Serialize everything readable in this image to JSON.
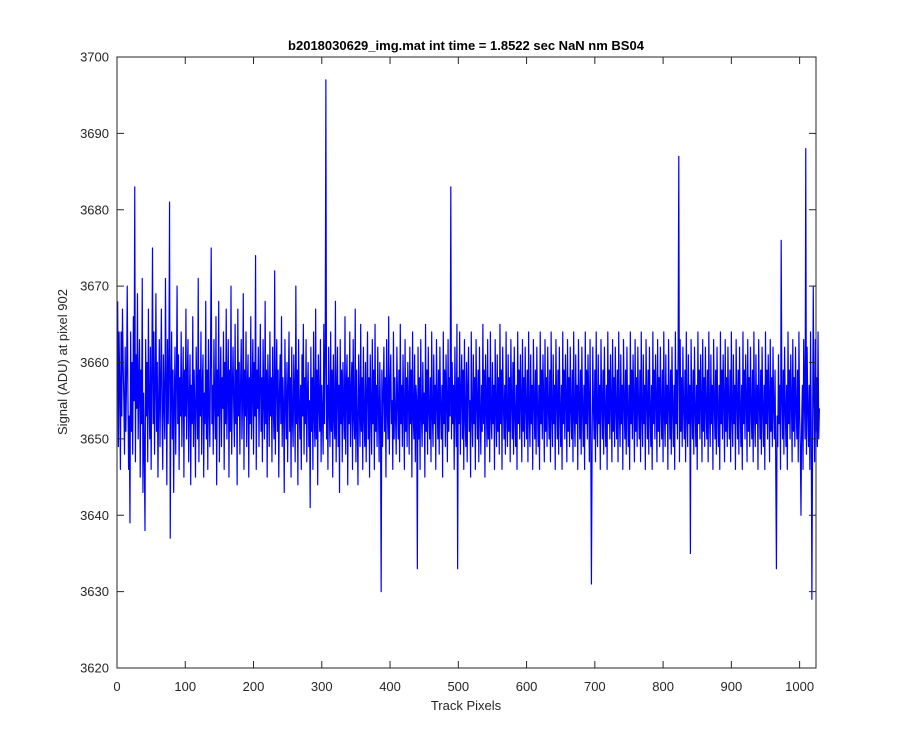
{
  "chart_data": {
    "type": "line",
    "title": "b2018030629_img.mat int time = 1.8522 sec  NaN nm BS04",
    "xlabel": "Track Pixels",
    "ylabel": "Signal (ADU) at pixel 902",
    "xlim": [
      0,
      1024
    ],
    "ylim": [
      3620,
      3700
    ],
    "xticks": [
      0,
      100,
      200,
      300,
      400,
      500,
      600,
      700,
      800,
      900,
      1000
    ],
    "yticks": [
      3620,
      3630,
      3640,
      3650,
      3660,
      3670,
      3680,
      3690,
      3700
    ],
    "grid": false,
    "legend": "none",
    "series": [
      {
        "color": "#0000ff",
        "x_start": 1,
        "x_step": 1,
        "values": [
          3668,
          3649,
          3664,
          3657,
          3646,
          3664,
          3653,
          3667,
          3660,
          3655,
          3648,
          3662,
          3651,
          3658,
          3670,
          3656,
          3646,
          3653,
          3639,
          3664,
          3651,
          3660,
          3648,
          3666,
          3655,
          3683,
          3647,
          3661,
          3654,
          3669,
          3650,
          3657,
          3663,
          3645,
          3659,
          3652,
          3671,
          3643,
          3656,
          3648,
          3638,
          3663,
          3653,
          3660,
          3647,
          3667,
          3655,
          3650,
          3662,
          3646,
          3658,
          3675,
          3652,
          3664,
          3648,
          3657,
          3669,
          3651,
          3660,
          3645,
          3655,
          3663,
          3649,
          3658,
          3667,
          3653,
          3646,
          3661,
          3655,
          3650,
          3671,
          3658,
          3644,
          3663,
          3652,
          3660,
          3681,
          3637,
          3656,
          3664,
          3650,
          3659,
          3643,
          3655,
          3662,
          3648,
          3657,
          3670,
          3652,
          3661,
          3646,
          3658,
          3653,
          3664,
          3649,
          3656,
          3662,
          3645,
          3659,
          3653,
          3667,
          3650,
          3658,
          3663,
          3647,
          3655,
          3661,
          3644,
          3657,
          3652,
          3666,
          3649,
          3659,
          3654,
          3645,
          3662,
          3656,
          3650,
          3671,
          3647,
          3659,
          3653,
          3664,
          3648,
          3657,
          3661,
          3645,
          3656,
          3652,
          3668,
          3650,
          3659,
          3646,
          3663,
          3654,
          3649,
          3661,
          3675,
          3652,
          3657,
          3648,
          3663,
          3655,
          3650,
          3666,
          3644,
          3659,
          3653,
          3668,
          3647,
          3656,
          3662,
          3649,
          3658,
          3654,
          3664,
          3646,
          3660,
          3652,
          3667,
          3650,
          3657,
          3663,
          3645,
          3659,
          3651,
          3670,
          3648,
          3656,
          3662,
          3654,
          3649,
          3665,
          3652,
          3659,
          3644,
          3667,
          3653,
          3660,
          3648,
          3657,
          3663,
          3650,
          3655,
          3669,
          3646,
          3659,
          3653,
          3664,
          3649,
          3657,
          3661,
          3645,
          3658,
          3652,
          3666,
          3650,
          3656,
          3663,
          3648,
          3660,
          3653,
          3674,
          3646,
          3659,
          3654,
          3662,
          3649,
          3657,
          3665,
          3651,
          3658,
          3647,
          3663,
          3655,
          3650,
          3668,
          3652,
          3659,
          3645,
          3661,
          3656,
          3649,
          3664,
          3653,
          3658,
          3647,
          3662,
          3654,
          3650,
          3672,
          3648,
          3657,
          3663,
          3651,
          3659,
          3645,
          3656,
          3661,
          3652,
          3666,
          3649,
          3658,
          3654,
          3643,
          3663,
          3655,
          3650,
          3660,
          3647,
          3657,
          3664,
          3651,
          3658,
          3645,
          3662,
          3653,
          3649,
          3661,
          3656,
          3647,
          3670,
          3652,
          3659,
          3644,
          3663,
          3654,
          3650,
          3657,
          3646,
          3661,
          3653,
          3665,
          3648,
          3658,
          3652,
          3663,
          3647,
          3656,
          3660,
          3649,
          3655,
          3641,
          3662,
          3651,
          3658,
          3646,
          3664,
          3653,
          3649,
          3667,
          3650,
          3659,
          3644,
          3661,
          3655,
          3651,
          3663,
          3647,
          3657,
          3653,
          3648,
          3665,
          3652,
          3660,
          3697,
          3650,
          3657,
          3646,
          3662,
          3654,
          3649,
          3664,
          3651,
          3659,
          3645,
          3661,
          3653,
          3650,
          3668,
          3647,
          3656,
          3662,
          3649,
          3657,
          3643,
          3663,
          3652,
          3659,
          3647,
          3660,
          3654,
          3650,
          3666,
          3648,
          3657,
          3661,
          3644,
          3658,
          3652,
          3664,
          3649,
          3656,
          3660,
          3646,
          3663,
          3653,
          3650,
          3667,
          3647,
          3659,
          3652,
          3644,
          3661,
          3655,
          3649,
          3665,
          3651,
          3658,
          3646,
          3662,
          3653,
          3649,
          3660,
          3647,
          3656,
          3664,
          3650,
          3658,
          3645,
          3661,
          3654,
          3648,
          3663,
          3652,
          3659,
          3646,
          3665,
          3651,
          3657,
          3649,
          3662,
          3654,
          3647,
          3660,
          3653,
          3630,
          3659,
          3649,
          3656,
          3662,
          3651,
          3658,
          3645,
          3663,
          3654,
          3650,
          3666,
          3648,
          3657,
          3661,
          3652,
          3655,
          3646,
          3664,
          3650,
          3658,
          3653,
          3648,
          3662,
          3655,
          3650,
          3659,
          3647,
          3665,
          3652,
          3657,
          3649,
          3661,
          3654,
          3646,
          3663,
          3651,
          3658,
          3649,
          3660,
          3655,
          3648,
          3662,
          3652,
          3659,
          3645,
          3664,
          3653,
          3650,
          3661,
          3647,
          3657,
          3655,
          3633,
          3662,
          3650,
          3658,
          3646,
          3663,
          3653,
          3649,
          3660,
          3652,
          3656,
          3645,
          3665,
          3651,
          3659,
          3648,
          3662,
          3654,
          3650,
          3658,
          3647,
          3664,
          3653,
          3649,
          3661,
          3652,
          3657,
          3646,
          3663,
          3655,
          3650,
          3659,
          3648,
          3662,
          3654,
          3650,
          3657,
          3645,
          3664,
          3652,
          3659,
          3649,
          3661,
          3655,
          3647,
          3663,
          3651,
          3658,
          3653,
          3683,
          3650,
          3660,
          3652,
          3657,
          3646,
          3662,
          3654,
          3649,
          3665,
          3633,
          3658,
          3652,
          3664,
          3648,
          3656,
          3661,
          3650,
          3659,
          3646,
          3663,
          3653,
          3649,
          3660,
          3647,
          3657,
          3662,
          3651,
          3655,
          3645,
          3664,
          3653,
          3649,
          3661,
          3652,
          3658,
          3646,
          3663,
          3655,
          3650,
          3659,
          3647,
          3662,
          3654,
          3648,
          3657,
          3651,
          3665,
          3652,
          3659,
          3645,
          3661,
          3655,
          3649,
          3663,
          3650,
          3658,
          3647,
          3664,
          3653,
          3650,
          3660,
          3652,
          3657,
          3646,
          3663,
          3654,
          3649,
          3661,
          3651,
          3658,
          3648,
          3665,
          3652,
          3659,
          3646,
          3662,
          3655,
          3650,
          3657,
          3648,
          3664,
          3653,
          3649,
          3661,
          3651,
          3658,
          3647,
          3663,
          3655,
          3650,
          3660,
          3648,
          3662,
          3653,
          3649,
          3657,
          3646,
          3664,
          3652,
          3659,
          3650,
          3661,
          3655,
          3647,
          3663,
          3651,
          3658,
          3649,
          3662,
          3654,
          3650,
          3659,
          3647,
          3664,
          3653,
          3649,
          3661,
          3652,
          3657,
          3646,
          3663,
          3655,
          3650,
          3659,
          3648,
          3662,
          3654,
          3649,
          3657,
          3646,
          3664,
          3652,
          3659,
          3650,
          3661,
          3655,
          3647,
          3663,
          3651,
          3658,
          3649,
          3662,
          3654,
          3650,
          3659,
          3647,
          3664,
          3653,
          3649,
          3661,
          3652,
          3657,
          3646,
          3663,
          3655,
          3650,
          3659,
          3648,
          3662,
          3654,
          3649,
          3657,
          3646,
          3664,
          3652,
          3659,
          3650,
          3661,
          3655,
          3647,
          3663,
          3651,
          3658,
          3649,
          3662,
          3654,
          3650,
          3659,
          3647,
          3664,
          3653,
          3649,
          3661,
          3652,
          3657,
          3646,
          3663,
          3655,
          3650,
          3659,
          3648,
          3662,
          3654,
          3649,
          3657,
          3646,
          3664,
          3652,
          3659,
          3650,
          3661,
          3655,
          3647,
          3663,
          3651,
          3631,
          3649,
          3662,
          3654,
          3650,
          3659,
          3647,
          3664,
          3653,
          3649,
          3661,
          3652,
          3657,
          3646,
          3663,
          3655,
          3650,
          3659,
          3648,
          3662,
          3654,
          3649,
          3657,
          3646,
          3664,
          3652,
          3659,
          3650,
          3661,
          3655,
          3647,
          3663,
          3651,
          3658,
          3649,
          3662,
          3654,
          3650,
          3659,
          3647,
          3664,
          3653,
          3649,
          3661,
          3652,
          3657,
          3646,
          3663,
          3655,
          3650,
          3659,
          3648,
          3662,
          3654,
          3649,
          3657,
          3646,
          3664,
          3652,
          3659,
          3650,
          3661,
          3655,
          3647,
          3663,
          3651,
          3658,
          3649,
          3662,
          3654,
          3650,
          3659,
          3647,
          3664,
          3653,
          3649,
          3661,
          3652,
          3657,
          3646,
          3663,
          3655,
          3650,
          3659,
          3648,
          3662,
          3654,
          3649,
          3657,
          3646,
          3664,
          3652,
          3659,
          3650,
          3661,
          3655,
          3647,
          3663,
          3651,
          3658,
          3649,
          3662,
          3654,
          3650,
          3659,
          3647,
          3664,
          3653,
          3649,
          3661,
          3652,
          3657,
          3646,
          3663,
          3655,
          3650,
          3659,
          3648,
          3662,
          3654,
          3649,
          3657,
          3646,
          3664,
          3652,
          3659,
          3650,
          3661,
          3687,
          3647,
          3663,
          3651,
          3658,
          3649,
          3662,
          3654,
          3650,
          3659,
          3647,
          3664,
          3653,
          3649,
          3661,
          3652,
          3657,
          3635,
          3663,
          3655,
          3650,
          3659,
          3648,
          3662,
          3654,
          3649,
          3657,
          3646,
          3664,
          3652,
          3659,
          3650,
          3661,
          3655,
          3647,
          3663,
          3651,
          3658,
          3649,
          3662,
          3654,
          3650,
          3659,
          3647,
          3664,
          3653,
          3649,
          3661,
          3652,
          3657,
          3646,
          3663,
          3655,
          3650,
          3659,
          3648,
          3662,
          3654,
          3649,
          3657,
          3646,
          3664,
          3652,
          3659,
          3650,
          3661,
          3655,
          3647,
          3663,
          3651,
          3658,
          3649,
          3662,
          3654,
          3650,
          3659,
          3647,
          3664,
          3653,
          3649,
          3661,
          3652,
          3657,
          3646,
          3663,
          3655,
          3650,
          3659,
          3648,
          3662,
          3654,
          3649,
          3657,
          3646,
          3664,
          3652,
          3659,
          3650,
          3661,
          3655,
          3647,
          3663,
          3651,
          3658,
          3649,
          3662,
          3654,
          3650,
          3659,
          3647,
          3664,
          3653,
          3649,
          3661,
          3652,
          3657,
          3646,
          3663,
          3655,
          3650,
          3659,
          3648,
          3662,
          3654,
          3649,
          3657,
          3646,
          3664,
          3652,
          3659,
          3650,
          3661,
          3655,
          3647,
          3663,
          3651,
          3658,
          3649,
          3662,
          3654,
          3650,
          3659,
          3647,
          3633,
          3653,
          3649,
          3661,
          3652,
          3657,
          3646,
          3676,
          3655,
          3650,
          3659,
          3648,
          3662,
          3654,
          3649,
          3657,
          3646,
          3664,
          3652,
          3659,
          3650,
          3661,
          3655,
          3647,
          3663,
          3651,
          3658,
          3649,
          3662,
          3654,
          3650,
          3659,
          3647,
          3664,
          3653,
          3649,
          3640,
          3652,
          3657,
          3646,
          3663,
          3655,
          3650,
          3688,
          3648,
          3662,
          3654,
          3649,
          3657,
          3646,
          3664,
          3652,
          3629,
          3650,
          3670,
          3655,
          3647,
          3663,
          3651,
          3658,
          3649,
          3664,
          3650,
          3654
        ]
      }
    ]
  }
}
